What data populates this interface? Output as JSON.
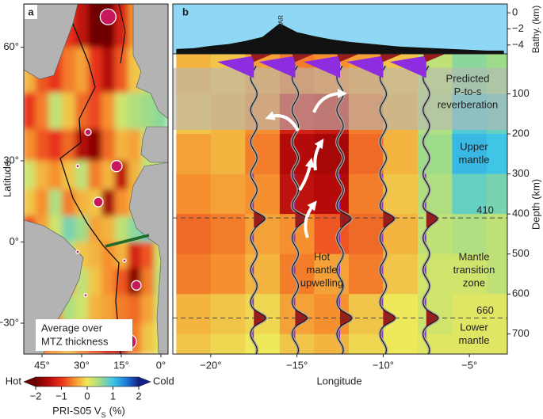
{
  "chart_data": [
    {
      "type": "map",
      "label": "a",
      "projection": "mercator",
      "xlim": [
        -51.9,
        2.7
      ],
      "ylim": [
        -39.8,
        67.4
      ],
      "xticks": [
        {
          "value": -45,
          "label": "45°"
        },
        {
          "value": -30,
          "label": "30°"
        },
        {
          "value": -15,
          "label": "15°"
        },
        {
          "value": 0,
          "label": "0°"
        }
      ],
      "yticks": [
        {
          "value": -30,
          "label": "−30°"
        },
        {
          "value": 0,
          "label": "0°"
        },
        {
          "value": 30,
          "label": "30°"
        },
        {
          "value": 60,
          "label": "60°"
        }
      ],
      "ylabel": "Latitude",
      "annotation": [
        "Average over",
        "MTZ thickness"
      ],
      "grid": {
        "lon": [
          -50,
          -45,
          -40,
          -35,
          -30,
          -25,
          -20,
          -15,
          -10,
          -5,
          0
        ],
        "lat": [
          65,
          55,
          45,
          35,
          25,
          15,
          5,
          -5,
          -15,
          -25,
          -35
        ],
        "values": [
          [
            -0.6,
            -0.8,
            -0.5,
            -1.0,
            -1.4,
            -2.0,
            -2.0,
            -1.2,
            -0.5,
            -0.3,
            0
          ],
          [
            -0.3,
            -0.8,
            -1.0,
            -0.6,
            -0.4,
            -1.0,
            -1.5,
            -0.8,
            -0.2,
            0.2,
            0.3
          ],
          [
            -1.0,
            -0.6,
            0.3,
            -0.2,
            -0.7,
            -0.9,
            -0.5,
            0.2,
            0.4,
            0.5,
            0.6
          ],
          [
            -0.5,
            -0.8,
            -1.0,
            -0.7,
            -1.5,
            -1.8,
            -0.7,
            -0.3,
            -0.4,
            0.2,
            0.3
          ],
          [
            0.2,
            -0.3,
            -0.5,
            -0.2,
            0.3,
            -0.6,
            -0.3,
            -1.4,
            -0.3,
            0.3,
            0.4
          ],
          [
            -0.2,
            -0.5,
            0.4,
            -0.6,
            -0.3,
            -0.2,
            -1.6,
            -0.5,
            -0.3,
            0.5,
            0.6
          ],
          [
            -0.9,
            -0.4,
            0.2,
            0.7,
            0.5,
            -0.4,
            -0.3,
            0.3,
            0.6,
            0.8,
            0.5
          ],
          [
            -0.7,
            -0.5,
            -0.4,
            0.3,
            -0.2,
            -0.3,
            -0.5,
            -0.3,
            -1.2,
            -0.8,
            0.2
          ],
          [
            -0.6,
            -0.8,
            -1.0,
            -0.4,
            0.3,
            -0.2,
            -0.5,
            -0.8,
            -1.8,
            -0.6,
            0.3
          ],
          [
            -0.3,
            -0.5,
            -0.6,
            0.4,
            0.2,
            -0.3,
            -0.4,
            -0.6,
            -0.7,
            -0.4,
            0.2
          ],
          [
            -0.5,
            -0.7,
            -0.5,
            -0.3,
            -0.6,
            -0.9,
            -1.3,
            -1.6,
            -0.6,
            -0.2,
            0.1
          ]
        ]
      },
      "hotspots": {
        "color": "#c8175d",
        "x": [
          -20,
          -27.6,
          -31.5,
          -16.8,
          -23.7,
          -31.5,
          -13.8,
          -9.3,
          -28.5,
          -12
        ],
        "y": [
          65.4,
          39.1,
          28.2,
          28.2,
          15.3,
          -3.8,
          -7.2,
          -16.6,
          -20.2,
          -36
        ],
        "sizes": [
          10,
          4,
          2,
          7,
          6,
          2,
          2,
          6,
          2,
          9
        ]
      }
    },
    {
      "type": "section",
      "label": "b",
      "xlim": [
        -22.2,
        -2.8
      ],
      "xticks": [
        {
          "value": -20,
          "label": "−20°"
        },
        {
          "value": -15,
          "label": "−15°"
        },
        {
          "value": -10,
          "label": "−10°"
        },
        {
          "value": -5,
          "label": "−5°"
        }
      ],
      "xlabel": "Longitude",
      "ylim": [
        750,
        0
      ],
      "yticks": [
        100,
        200,
        300,
        400,
        500,
        600,
        700
      ],
      "ylabel": "Depth (km)",
      "y2lim": [
        -5.1,
        1.1
      ],
      "y2ticks": [
        0,
        {
          "value": -2,
          "label": "−2"
        },
        {
          "value": -4,
          "label": "−4"
        }
      ],
      "y2label": "Bathy. (km)",
      "bathymetry": {
        "x": [
          -22,
          -21,
          -20,
          -19,
          -18,
          -17,
          -16,
          -15,
          -14,
          -13,
          -12,
          -11,
          -10,
          -9,
          -8,
          -7,
          -6,
          -5,
          -4,
          -3
        ],
        "values": [
          -4.5,
          -4.4,
          -4.1,
          -3.9,
          -3.5,
          -3.0,
          -1.3,
          -2.4,
          -2.9,
          -3.3,
          -3.6,
          -3.8,
          -4.0,
          -4.2,
          -4.3,
          -4.4,
          -4.5,
          -4.6,
          -4.7,
          -4.7
        ],
        "annotation": "MAR",
        "annotation_x": -15.9
      },
      "reverberation_band": [
        35,
        190
      ],
      "discontinuities": [
        410,
        660
      ],
      "grid": {
        "lon": [
          -21,
          -19,
          -17,
          -15,
          -13,
          -11,
          -9,
          -7,
          -5,
          -3
        ],
        "depth": [
          50,
          150,
          250,
          350,
          450,
          550,
          650,
          750
        ],
        "values": [
          [
            -0.3,
            -0.2,
            -0.4,
            -0.6,
            -0.5,
            -0.4,
            -0.2,
            0.3,
            0.6,
            0.5
          ],
          [
            -0.2,
            -0.3,
            -0.5,
            -1.2,
            -1.3,
            -0.6,
            -0.3,
            0.4,
            0.9,
            0.8
          ],
          [
            -0.4,
            -0.3,
            -0.6,
            -1.5,
            -1.6,
            -0.7,
            -0.3,
            0.5,
            1.1,
            1.0
          ],
          [
            -0.5,
            -0.4,
            -0.5,
            -1.4,
            -1.5,
            -0.6,
            -0.2,
            0.4,
            0.8,
            0.7
          ],
          [
            -0.7,
            -0.6,
            -0.4,
            -0.5,
            -0.8,
            -0.7,
            -0.3,
            0.3,
            0.4,
            0.3
          ],
          [
            -0.6,
            -0.5,
            -0.3,
            -0.6,
            -0.4,
            -0.6,
            -0.2,
            0.2,
            0.2,
            0.3
          ],
          [
            -0.3,
            -0.2,
            -0.1,
            -0.4,
            -0.5,
            -0.2,
            0.0,
            0.2,
            0.1,
            0.1
          ],
          [
            -0.2,
            -0.1,
            0.0,
            -0.2,
            -0.3,
            -0.1,
            0.0,
            0.1,
            0.1,
            0.1
          ]
        ]
      },
      "traces": {
        "lon": [
          -17.5,
          -15.1,
          -12.5,
          -10.0,
          -7.5
        ]
      },
      "annotations": {
        "reverberation": [
          "Predicted",
          "P-to-s",
          "reverberation"
        ],
        "upper": [
          "Upper",
          "mantle"
        ],
        "mtz": [
          "Mantle",
          "transition",
          "zone"
        ],
        "lower": [
          "Lower",
          "mantle"
        ],
        "upwelling": [
          "Hot",
          "mantle",
          "upwelling"
        ]
      }
    },
    {
      "type": "colorbar",
      "clim": [
        -2,
        2
      ],
      "colors": [
        "#6e0000",
        "#b40a0a",
        "#e8311c",
        "#f6902f",
        "#eee95a",
        "#9fdc8a",
        "#3fc6e6",
        "#1f7fd8",
        "#121f8c"
      ],
      "ticks": [
        {
          "value": -2,
          "label": "−2"
        },
        {
          "value": -1,
          "label": "−1"
        },
        0,
        1,
        2
      ],
      "low_label": "Hot",
      "high_label": "Cold",
      "label": "PRI-S05 V",
      "label_sub": "S",
      "label_unit": "(%)"
    }
  ]
}
